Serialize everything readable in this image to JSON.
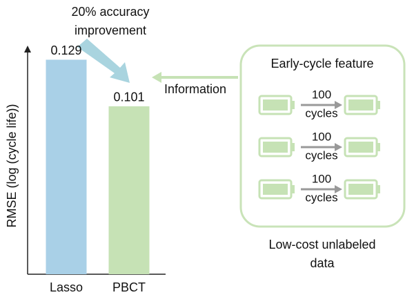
{
  "chart_data": {
    "type": "bar",
    "categories": [
      "Lasso",
      "PBCT"
    ],
    "values": [
      0.129,
      0.101
    ],
    "colors": [
      "#a9d0e7",
      "#c6e2b5"
    ],
    "ylabel": "RMSE (log (cycle life))",
    "ylim": [
      0,
      0.135
    ],
    "annotation": [
      "20% accuracy",
      "improvement"
    ]
  },
  "diagram": {
    "arrow_label": "Information",
    "title": "Early-cycle feature",
    "steps": [
      {
        "top": "100",
        "bottom": "cycles"
      },
      {
        "top": "100",
        "bottom": "cycles"
      },
      {
        "top": "100",
        "bottom": "cycles"
      }
    ],
    "caption": [
      "Low-cost unlabeled",
      "data"
    ]
  }
}
